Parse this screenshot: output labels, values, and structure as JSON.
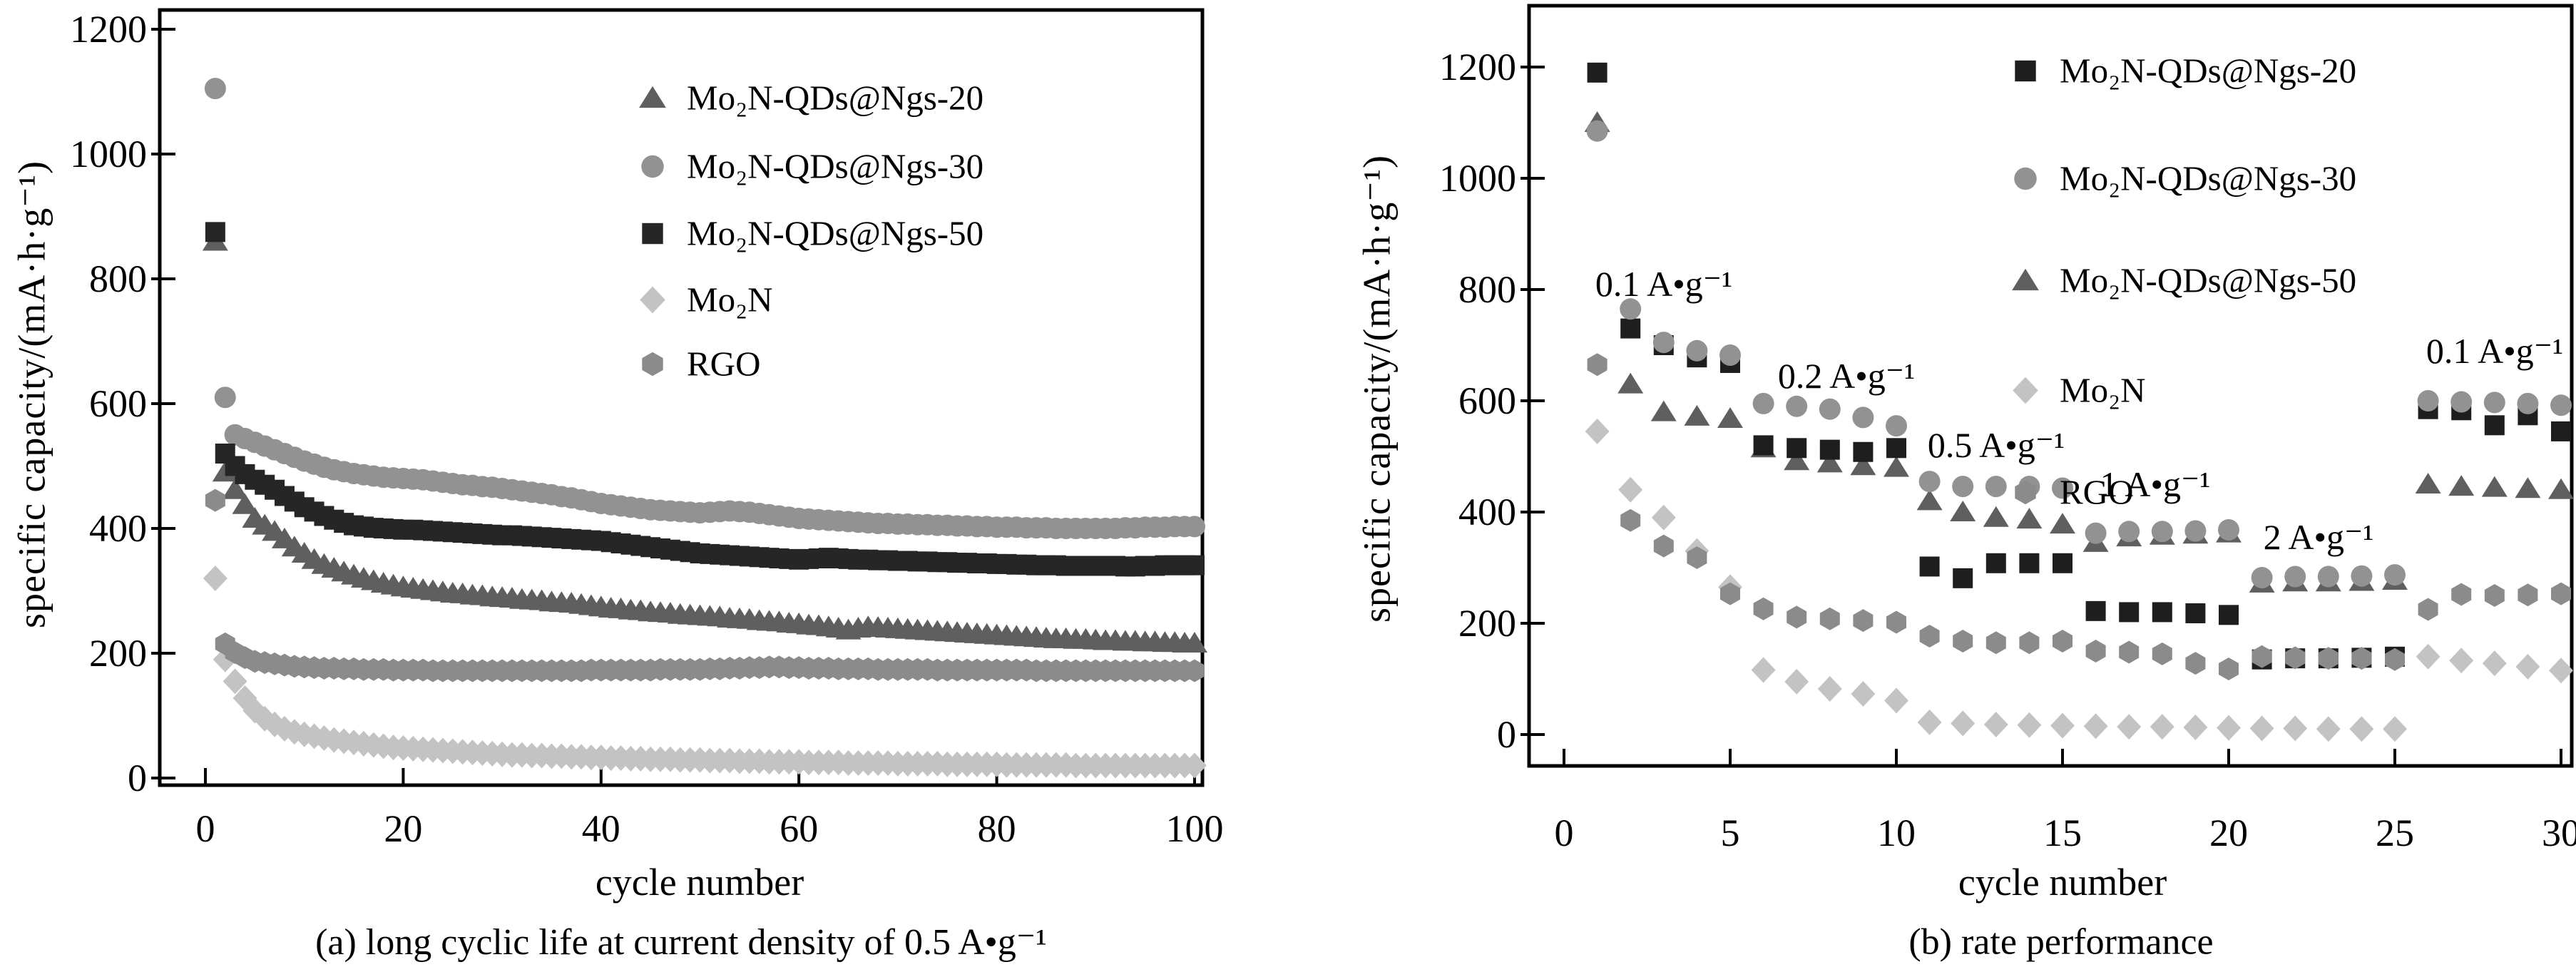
{
  "figure": {
    "description": "Two-panel grayscale scatter figure of lithium storage performance",
    "background": "#ffffff",
    "axis_color": "#000000"
  },
  "chart_data": [
    {
      "id": "a",
      "type": "scatter",
      "caption": "(a) long cyclic life at current density of 0.5 A•g⁻¹",
      "xlabel": "cycle number",
      "ylabel": "specific capacity/(mA·h·g⁻¹)",
      "x_ticks": [
        0,
        20,
        40,
        60,
        80,
        100
      ],
      "y_ticks": [
        0,
        200,
        400,
        600,
        800,
        1000,
        1200
      ],
      "xlim": [
        -5,
        103
      ],
      "ylim": [
        -12,
        1242
      ],
      "grid": false,
      "legend_position": "upper-right-inside",
      "series": [
        {
          "name": "Mo₂N-QDs@Ngs-20",
          "marker": "triangle",
          "color": "#5f5f5f",
          "values": [
            860,
            490,
            462,
            438,
            416,
            405,
            395,
            383,
            370,
            360,
            350,
            342,
            336,
            330,
            325,
            320,
            316,
            312,
            309,
            306,
            304,
            302,
            300,
            298,
            296,
            295,
            293,
            292,
            290,
            289,
            288,
            286,
            285,
            284,
            282,
            281,
            280,
            278,
            276,
            274,
            272,
            271,
            269,
            268,
            266,
            265,
            264,
            262,
            261,
            260,
            259,
            258,
            256,
            255,
            254,
            252,
            251,
            250,
            248,
            247,
            245,
            244,
            242,
            240,
            237,
            240,
            242,
            241,
            240,
            239,
            238,
            237,
            236,
            235,
            234,
            233,
            232,
            231,
            230,
            229,
            228,
            227,
            226,
            225,
            224,
            223,
            223,
            222,
            222,
            221,
            220,
            220,
            219,
            219,
            218,
            218,
            217,
            217,
            216,
            216
          ]
        },
        {
          "name": "Mo₂N-QDs@Ngs-30",
          "marker": "circle",
          "color": "#929292",
          "values": [
            1105,
            610,
            550,
            544,
            538,
            532,
            526,
            520,
            514,
            508,
            503,
            498,
            494,
            491,
            488,
            486,
            484,
            482,
            481,
            480,
            479,
            478,
            476,
            474,
            472,
            470,
            469,
            467,
            466,
            464,
            462,
            460,
            458,
            456,
            454,
            451,
            449,
            446,
            443,
            440,
            438,
            436,
            434,
            432,
            430,
            429,
            428,
            427,
            426,
            425,
            426,
            427,
            428,
            427,
            426,
            424,
            422,
            420,
            418,
            416,
            415,
            414,
            413,
            412,
            411,
            410,
            409,
            408,
            408,
            407,
            407,
            406,
            406,
            405,
            405,
            404,
            404,
            403,
            403,
            402,
            402,
            402,
            401,
            401,
            401,
            400,
            400,
            400,
            400,
            400,
            400,
            400,
            401,
            401,
            402,
            402,
            402,
            403,
            403,
            403
          ]
        },
        {
          "name": "Mo₂N-QDs@Ngs-50",
          "marker": "square",
          "color": "#262626",
          "values": [
            875,
            520,
            500,
            487,
            478,
            470,
            462,
            452,
            443,
            434,
            427,
            420,
            414,
            409,
            405,
            403,
            401,
            400,
            399,
            398,
            398,
            397,
            396,
            395,
            394,
            393,
            392,
            391,
            390,
            389,
            389,
            388,
            387,
            386,
            385,
            384,
            383,
            382,
            381,
            380,
            378,
            376,
            374,
            372,
            370,
            368,
            366,
            364,
            362,
            360,
            359,
            358,
            357,
            356,
            355,
            354,
            353,
            352,
            351,
            350,
            351,
            352,
            353,
            352,
            351,
            350,
            350,
            349,
            349,
            348,
            348,
            347,
            347,
            346,
            346,
            345,
            345,
            344,
            344,
            343,
            343,
            342,
            342,
            341,
            341,
            341,
            340,
            340,
            340,
            340,
            340,
            340,
            339,
            339,
            340,
            340,
            341,
            341,
            341,
            341
          ]
        },
        {
          "name": "Mo₂N",
          "marker": "diamond",
          "color": "#c3c3c3",
          "values": [
            320,
            190,
            155,
            128,
            108,
            95,
            86,
            79,
            74,
            70,
            67,
            64,
            61,
            59,
            57,
            55,
            53,
            51,
            49,
            48,
            47,
            46,
            45,
            44,
            43,
            42,
            41,
            40,
            39,
            38,
            37,
            37,
            36,
            36,
            35,
            35,
            34,
            34,
            33,
            33,
            32,
            32,
            31,
            31,
            30,
            30,
            30,
            29,
            29,
            29,
            28,
            28,
            28,
            27,
            27,
            27,
            26,
            26,
            26,
            26,
            25,
            25,
            25,
            25,
            24,
            24,
            24,
            24,
            24,
            23,
            23,
            23,
            23,
            23,
            22,
            22,
            22,
            22,
            22,
            22,
            21,
            21,
            21,
            21,
            21,
            21,
            21,
            20,
            20,
            20,
            20,
            20,
            20,
            20,
            20,
            20,
            20,
            20,
            20,
            20
          ]
        },
        {
          "name": "RGO",
          "marker": "hexagon",
          "color": "#8b8b8b",
          "values": [
            445,
            215,
            201,
            193,
            187,
            185,
            183,
            181,
            179,
            178,
            177,
            176,
            176,
            175,
            175,
            174,
            174,
            174,
            173,
            173,
            173,
            173,
            172,
            172,
            172,
            172,
            172,
            172,
            172,
            172,
            172,
            172,
            172,
            172,
            172,
            172,
            172,
            172,
            173,
            173,
            173,
            173,
            173,
            173,
            173,
            174,
            174,
            174,
            174,
            174,
            175,
            175,
            176,
            176,
            177,
            177,
            178,
            178,
            177,
            177,
            176,
            176,
            176,
            175,
            175,
            175,
            175,
            174,
            174,
            174,
            174,
            174,
            174,
            173,
            173,
            173,
            173,
            173,
            173,
            173,
            173,
            173,
            173,
            172,
            172,
            172,
            172,
            172,
            172,
            172,
            172,
            172,
            172,
            172,
            172,
            172,
            172,
            172,
            172,
            172
          ]
        }
      ],
      "annotations": []
    },
    {
      "id": "b",
      "type": "scatter",
      "caption": "(b) rate performance",
      "xlabel": "cycle number",
      "ylabel": "specific capacity/(mA·h·g⁻¹)",
      "x_ticks": [
        0,
        5,
        10,
        15,
        20,
        25,
        30
      ],
      "y_ticks": [
        0,
        200,
        400,
        600,
        800,
        1000,
        1200
      ],
      "xlim": [
        -1,
        30.3
      ],
      "ylim": [
        -56,
        1310
      ],
      "grid": false,
      "legend_position": "upper-right-inside",
      "rate_segments": [
        "0.1 A•g⁻¹ (cycles 1-5)",
        "0.2 A•g⁻¹ (cycles 6-10)",
        "0.5 A•g⁻¹ (cycles 11-15)",
        "1 A•g⁻¹ (cycles 16-20)",
        "2 A•g⁻¹ (cycles 21-25)",
        "0.1 A•g⁻¹ (cycles 26-30)"
      ],
      "series": [
        {
          "name": "Mo₂N-QDs@Ngs-20",
          "marker": "square",
          "color": "#1e1e1e",
          "values": [
            1190,
            730,
            700,
            678,
            668,
            520,
            515,
            512,
            508,
            515,
            302,
            281,
            308,
            308,
            308,
            222,
            220,
            220,
            218,
            215,
            135,
            137,
            137,
            138,
            140,
            585,
            583,
            556,
            574,
            545
          ]
        },
        {
          "name": "Mo₂N-QDs@Ngs-30",
          "marker": "circle",
          "color": "#929292",
          "values": [
            1085,
            765,
            705,
            690,
            682,
            595,
            590,
            585,
            570,
            555,
            455,
            446,
            446,
            446,
            443,
            362,
            365,
            365,
            366,
            368,
            282,
            284,
            284,
            285,
            287,
            600,
            598,
            597,
            595,
            592
          ]
        },
        {
          "name": "Mo₂N-QDs@Ngs-50",
          "marker": "triangle",
          "color": "#5f5f5f",
          "values": [
            1100,
            630,
            580,
            572,
            568,
            515,
            492,
            488,
            483,
            480,
            420,
            400,
            390,
            387,
            378,
            345,
            355,
            358,
            360,
            362,
            272,
            274,
            274,
            275,
            277,
            450,
            446,
            444,
            442,
            440
          ]
        },
        {
          "name": "Mo₂N",
          "marker": "diamond",
          "color": "#c3c3c3",
          "values": [
            545,
            440,
            390,
            330,
            265,
            116,
            95,
            82,
            73,
            61,
            22,
            20,
            18,
            17,
            16,
            15,
            14,
            14,
            13,
            12,
            11,
            11,
            10,
            10,
            10,
            140,
            133,
            128,
            122,
            115
          ]
        },
        {
          "name": "RGO",
          "marker": "hexagon",
          "color": "#8b8b8b",
          "values": [
            665,
            385,
            339,
            318,
            253,
            226,
            211,
            208,
            205,
            202,
            177,
            168,
            165,
            165,
            168,
            150,
            148,
            145,
            128,
            118,
            140,
            138,
            137,
            137,
            135,
            225,
            252,
            250,
            251,
            253
          ]
        }
      ],
      "annotations": [
        {
          "text": "0.1 A•g⁻¹",
          "x": 3.0,
          "y": 810
        },
        {
          "text": "0.2 A•g⁻¹",
          "x": 8.5,
          "y": 645
        },
        {
          "text": "0.5 A•g⁻¹",
          "x": 13.0,
          "y": 520
        },
        {
          "text": "1 A•g⁻¹",
          "x": 17.8,
          "y": 450
        },
        {
          "text": "2 A•g⁻¹",
          "x": 22.7,
          "y": 355
        },
        {
          "text": "0.1 A•g⁻¹",
          "x": 28.0,
          "y": 690
        }
      ]
    }
  ]
}
